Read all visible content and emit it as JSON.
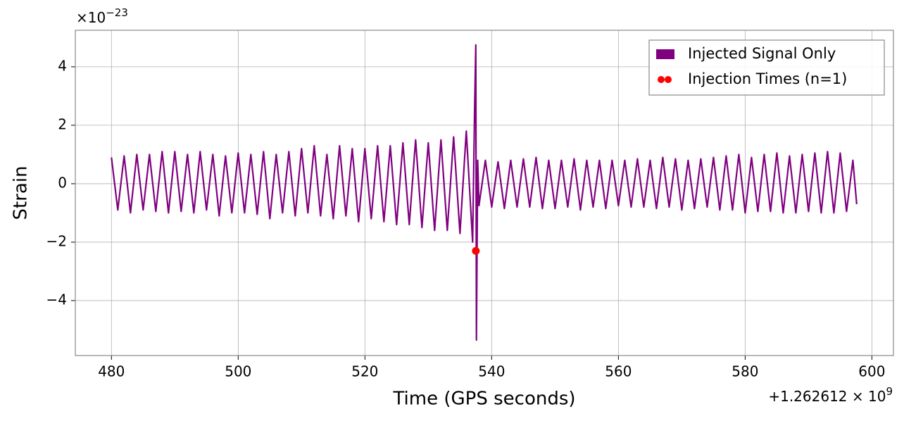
{
  "chart_data": {
    "type": "line",
    "xlabel": "Time (GPS seconds)",
    "ylabel": "Strain",
    "x_offset": {
      "base": "+1.262612 × 10",
      "exponent": "9"
    },
    "y_offset": {
      "base": "×10",
      "exponent": "−23"
    },
    "xlim": [
      474.3,
      603.4
    ],
    "ylim": [
      -5.88,
      5.25
    ],
    "xticks": [
      480,
      500,
      520,
      540,
      560,
      580,
      600
    ],
    "yticks": [
      {
        "value": -4,
        "label": "−4"
      },
      {
        "value": -2,
        "label": "−2"
      },
      0,
      2,
      4
    ],
    "grid": true,
    "legend": "upper right",
    "series": [
      {
        "name": "Injected Signal Only",
        "color": "#800080",
        "marker": "patch",
        "x": [
          480,
          481,
          482,
          483,
          484,
          485,
          486,
          487,
          488,
          489,
          490,
          491,
          492,
          493,
          494,
          495,
          496,
          497,
          498,
          499,
          500,
          501,
          502,
          503,
          504,
          505,
          506,
          507,
          508,
          509,
          510,
          511,
          512,
          513,
          514,
          515,
          516,
          517,
          518,
          519,
          520,
          521,
          522,
          523,
          524,
          525,
          526,
          527,
          528,
          529,
          530,
          531,
          532,
          533,
          534,
          535,
          536,
          537,
          537.3,
          537.5,
          537.6,
          537.8,
          538,
          539,
          540,
          541,
          542,
          543,
          544,
          545,
          546,
          547,
          548,
          549,
          550,
          551,
          552,
          553,
          554,
          555,
          556,
          557,
          558,
          559,
          560,
          561,
          562,
          563,
          564,
          565,
          566,
          567,
          568,
          569,
          570,
          571,
          572,
          573,
          574,
          575,
          576,
          577,
          578,
          579,
          580,
          581,
          582,
          583,
          584,
          585,
          586,
          587,
          588,
          589,
          590,
          591,
          592,
          593,
          594,
          595,
          596,
          597,
          597.6
        ],
        "values": [
          0.9,
          -0.9,
          0.95,
          -1.0,
          1.0,
          -0.9,
          1.0,
          -0.95,
          1.1,
          -1.0,
          1.1,
          -0.95,
          1.0,
          -1.0,
          1.1,
          -0.9,
          1.0,
          -1.1,
          0.95,
          -1.0,
          1.05,
          -1.0,
          1.0,
          -1.05,
          1.1,
          -1.2,
          1.0,
          -1.0,
          1.1,
          -1.1,
          1.2,
          -1.0,
          1.3,
          -1.1,
          1.0,
          -1.2,
          1.3,
          -1.1,
          1.2,
          -1.3,
          1.2,
          -1.2,
          1.3,
          -1.3,
          1.3,
          -1.4,
          1.4,
          -1.4,
          1.5,
          -1.5,
          1.4,
          -1.6,
          1.5,
          -1.6,
          1.6,
          -1.7,
          1.8,
          -2.0,
          2.4,
          4.75,
          -5.35,
          0.8,
          -0.75,
          0.8,
          -0.8,
          0.75,
          -0.85,
          0.8,
          -0.8,
          0.85,
          -0.8,
          0.9,
          -0.85,
          0.8,
          -0.85,
          0.8,
          -0.8,
          0.85,
          -0.9,
          0.8,
          -0.8,
          0.8,
          -0.85,
          0.8,
          -0.75,
          0.8,
          -0.8,
          0.85,
          -0.8,
          0.8,
          -0.85,
          0.9,
          -0.8,
          0.85,
          -0.9,
          0.8,
          -0.85,
          0.85,
          -0.8,
          0.9,
          -0.9,
          0.95,
          -0.9,
          1.0,
          -1.0,
          0.9,
          -0.95,
          1.0,
          -0.95,
          1.05,
          -1.0,
          0.95,
          -1.0,
          1.0,
          -0.95,
          1.05,
          -1.0,
          1.1,
          -1.0,
          1.05,
          -0.95,
          0.8,
          -0.7
        ]
      },
      {
        "name": "Injection Times (n=1)",
        "color": "#ff0000",
        "marker": "dot",
        "x": [
          537.5
        ],
        "values": [
          -2.3
        ]
      }
    ]
  }
}
